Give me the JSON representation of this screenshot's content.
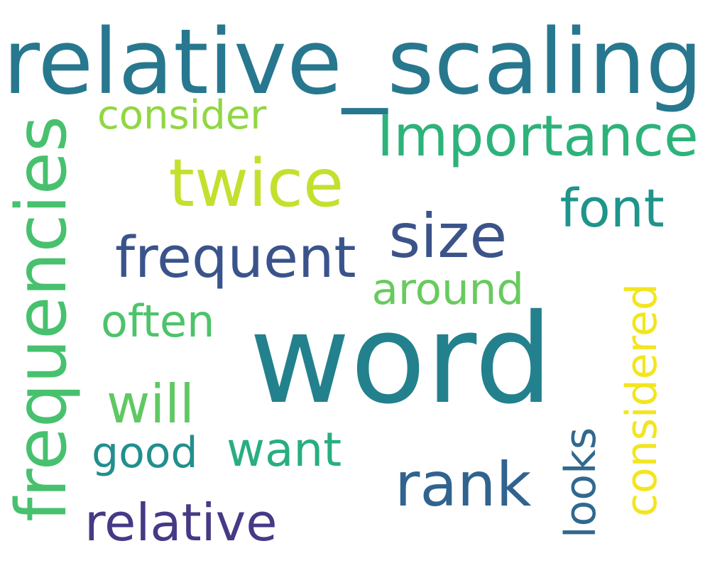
{
  "words": [
    {
      "id": "relative_scaling",
      "text": "relative_scaling",
      "color": "#27788E"
    },
    {
      "id": "word",
      "text": "word",
      "color": "#23818D"
    },
    {
      "id": "frequencies",
      "text": "frequencies",
      "color": "#47C16E"
    },
    {
      "id": "twice",
      "text": "twice",
      "color": "#C4E02E"
    },
    {
      "id": "importance",
      "text": "Importance",
      "color": "#2DB37A"
    },
    {
      "id": "size",
      "text": "size",
      "color": "#3C538A"
    },
    {
      "id": "frequent",
      "text": "frequent",
      "color": "#3A548B"
    },
    {
      "id": "rank",
      "text": "rank",
      "color": "#30638E"
    },
    {
      "id": "considered",
      "text": "considered",
      "color": "#F3E51F"
    },
    {
      "id": "font",
      "text": "font",
      "color": "#1F948B"
    },
    {
      "id": "consider",
      "text": "consider",
      "color": "#90D742"
    },
    {
      "id": "around",
      "text": "around",
      "color": "#67CB5E"
    },
    {
      "id": "often",
      "text": "often",
      "color": "#4DC36A"
    },
    {
      "id": "will",
      "text": "will",
      "color": "#60C862"
    },
    {
      "id": "want",
      "text": "want",
      "color": "#28AE7F"
    },
    {
      "id": "good",
      "text": "good",
      "color": "#218F8D"
    },
    {
      "id": "looks",
      "text": "looks",
      "color": "#31688E"
    },
    {
      "id": "relative",
      "text": "relative",
      "color": "#463985"
    }
  ]
}
